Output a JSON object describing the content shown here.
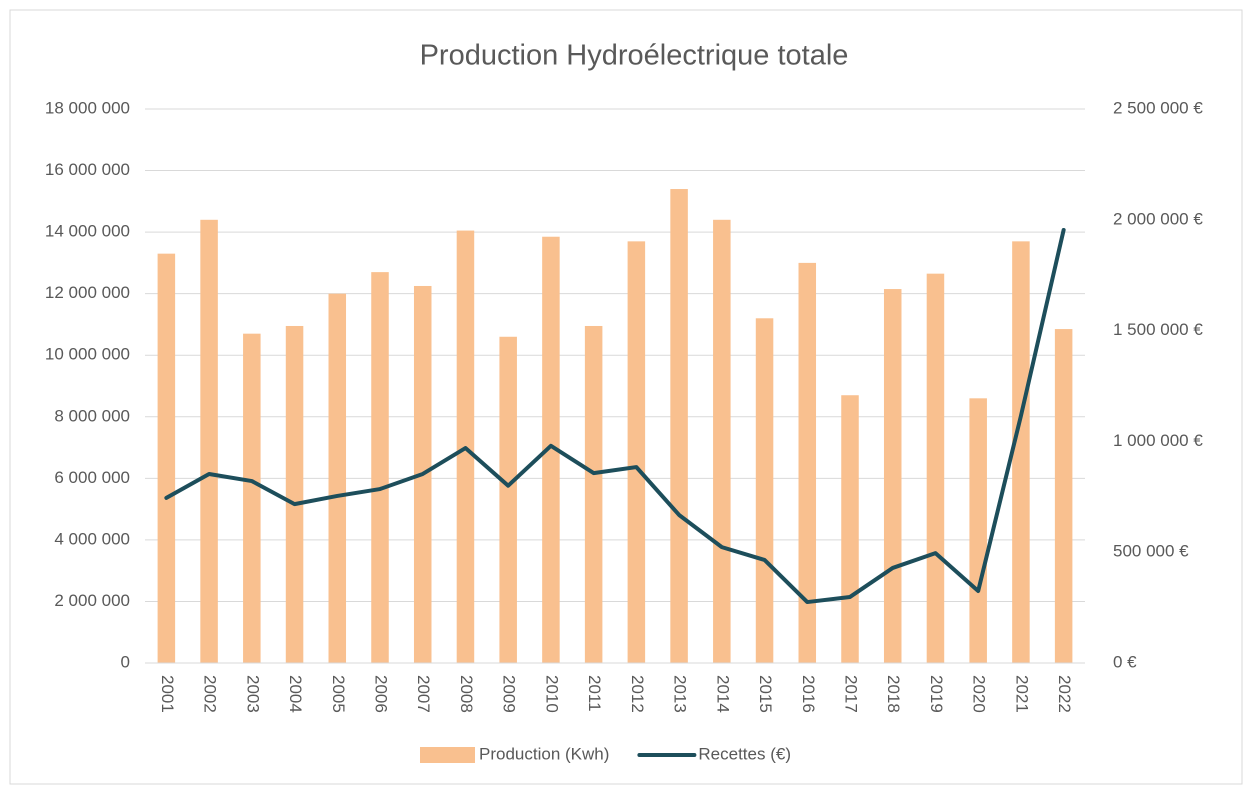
{
  "chart_data": {
    "type": "bar_line",
    "title": "Production Hydroélectrique totale",
    "categories": [
      "2001",
      "2002",
      "2003",
      "2004",
      "2005",
      "2006",
      "2007",
      "2008",
      "2009",
      "2010",
      "2011",
      "2012",
      "2013",
      "2014",
      "2015",
      "2016",
      "2017",
      "2018",
      "2019",
      "2020",
      "2021",
      "2022"
    ],
    "series": [
      {
        "name": "Production (Kwh)",
        "type": "bar",
        "color": "#f9c08f",
        "values": [
          13300000,
          14400000,
          10700000,
          10950000,
          12000000,
          12700000,
          12250000,
          14050000,
          10600000,
          13850000,
          10950000,
          13700000,
          15400000,
          14400000,
          11200000,
          13000000,
          8700000,
          12150000,
          12650000,
          8600000,
          13700000,
          10850000
        ]
      },
      {
        "name": "Recettes (€)",
        "type": "line",
        "axis": "y2",
        "color": "#1d4e5b",
        "values": [
          745000,
          853000,
          821000,
          717000,
          754000,
          785000,
          853000,
          970000,
          800000,
          980000,
          857000,
          884000,
          668000,
          523000,
          465000,
          275000,
          298000,
          429000,
          496000,
          325000,
          1115000,
          1954000
        ]
      }
    ],
    "ylim": [
      0,
      18000000
    ],
    "yticks": [
      0,
      {
        "value": 2000000,
        "label": "2 000 000"
      },
      {
        "value": 4000000,
        "label": "4 000 000"
      },
      {
        "value": 6000000,
        "label": "6 000 000"
      },
      {
        "value": 8000000,
        "label": "8 000 000"
      },
      {
        "value": 10000000,
        "label": "10 000 000"
      },
      {
        "value": 12000000,
        "label": "12 000 000"
      },
      {
        "value": 14000000,
        "label": "14 000 000"
      },
      {
        "value": 16000000,
        "label": "16 000 000"
      },
      {
        "value": 18000000,
        "label": "18 000 000"
      }
    ],
    "y2lim": [
      0,
      2500000
    ],
    "y2ticks": [
      {
        "value": 0,
        "label": "0 €"
      },
      {
        "value": 500000,
        "label": "500 000 €"
      },
      {
        "value": 1000000,
        "label": "1 000 000 €"
      },
      {
        "value": 1500000,
        "label": "1 500 000 €"
      },
      {
        "value": 2000000,
        "label": "2 000 000 €"
      },
      {
        "value": 2500000,
        "label": "2 500 000 €"
      }
    ],
    "grid": true,
    "legend": "bottom"
  }
}
